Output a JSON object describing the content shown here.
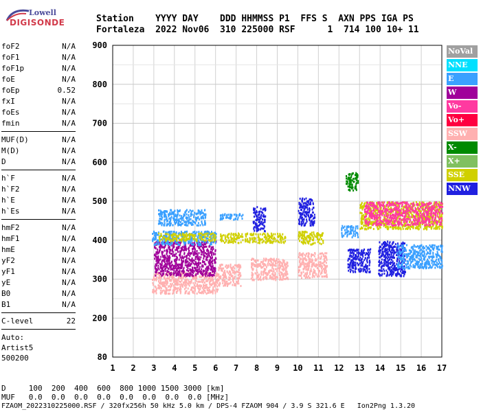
{
  "logo": {
    "line1": "Lowell",
    "line2": "DIGISONDE"
  },
  "header": {
    "row1": "Station    YYYY DAY    DDD HHMMSS P1  FFS S  AXN PPS IGA PS",
    "row2": "Fortaleza  2022 Nov06  310 225000 RSF      1  714 100 10+ 11"
  },
  "params": {
    "group1": [
      [
        "foF2",
        "N/A"
      ],
      [
        "foF1",
        "N/A"
      ],
      [
        "foF1p",
        "N/A"
      ],
      [
        "foE",
        "N/A"
      ],
      [
        "foEp",
        "0.52"
      ],
      [
        "fxI",
        "N/A"
      ],
      [
        "foEs",
        "N/A"
      ],
      [
        "fmin",
        "N/A"
      ]
    ],
    "group2": [
      [
        "MUF(D)",
        "N/A"
      ],
      [
        "M(D)",
        "N/A"
      ],
      [
        "D",
        "N/A"
      ]
    ],
    "group3": [
      [
        "h`F",
        "N/A"
      ],
      [
        "h`F2",
        "N/A"
      ],
      [
        "h`E",
        "N/A"
      ],
      [
        "h`Es",
        "N/A"
      ]
    ],
    "group4": [
      [
        "hmF2",
        "N/A"
      ],
      [
        "hmF1",
        "N/A"
      ],
      [
        "hmE",
        "N/A"
      ],
      [
        "yF2",
        "N/A"
      ],
      [
        "yF1",
        "N/A"
      ],
      [
        "yE",
        "N/A"
      ],
      [
        "B0",
        "N/A"
      ],
      [
        "B1",
        "N/A"
      ]
    ],
    "clevel": [
      "C-level",
      "22"
    ],
    "auto": [
      "Auto:",
      "Artist5",
      "500200"
    ]
  },
  "legend": [
    {
      "label": "NoVal",
      "color": "#a0a0a0"
    },
    {
      "label": "NNE",
      "color": "#00e0ff"
    },
    {
      "label": "E",
      "color": "#3aa0ff"
    },
    {
      "label": "W",
      "color": "#a0009a"
    },
    {
      "label": "Vo-",
      "color": "#ff3aa0"
    },
    {
      "label": "Vo+",
      "color": "#ff0040"
    },
    {
      "label": "SSW",
      "color": "#ffb0b0"
    },
    {
      "label": "X-",
      "color": "#008a00"
    },
    {
      "label": "X+",
      "color": "#80c060"
    },
    {
      "label": "SSE",
      "color": "#d0d000"
    },
    {
      "label": "NNW",
      "color": "#2020e0"
    }
  ],
  "bottom": {
    "drow": "D     100  200  400  600  800 1000 1500 3000 [km]",
    "mrow": "MUF   0.0  0.0  0.0  0.0  0.0  0.0  0.0  0.0 [MHz]"
  },
  "footer": "FZAOM_2022310225000.RSF / 320fx256h 50 kHz 5.0 km / DPS-4 FZAOM 904 / 3.9 S 321.6 E   Ion2Png 1.3.20",
  "chart_data": {
    "type": "scatter",
    "xlim": [
      1,
      17
    ],
    "ylim": [
      80,
      900
    ],
    "xticks": [
      1,
      2,
      3,
      4,
      5,
      6,
      7,
      8,
      9,
      10,
      11,
      12,
      13,
      14,
      15,
      16,
      17
    ],
    "yticks": [
      80,
      200,
      300,
      400,
      500,
      600,
      700,
      800,
      900
    ],
    "clusters": [
      {
        "name": "SSW",
        "color": "#ffb0b0",
        "x": [
          2.9,
          6.1
        ],
        "y": [
          265,
          320
        ]
      },
      {
        "name": "SSW",
        "color": "#ffb0b0",
        "x": [
          6.1,
          7.2
        ],
        "y": [
          285,
          340
        ]
      },
      {
        "name": "SSW",
        "color": "#ffb0b0",
        "x": [
          7.7,
          9.5
        ],
        "y": [
          300,
          355
        ]
      },
      {
        "name": "SSW",
        "color": "#ffb0b0",
        "x": [
          10.0,
          11.4
        ],
        "y": [
          305,
          370
        ]
      },
      {
        "name": "W",
        "color": "#a0009a",
        "x": [
          3.0,
          6.0
        ],
        "y": [
          310,
          400
        ]
      },
      {
        "name": "E",
        "color": "#3aa0ff",
        "x": [
          2.9,
          6.0
        ],
        "y": [
          390,
          425
        ]
      },
      {
        "name": "E",
        "color": "#3aa0ff",
        "x": [
          3.2,
          5.5
        ],
        "y": [
          440,
          480
        ]
      },
      {
        "name": "SSE",
        "color": "#d0d000",
        "x": [
          3.2,
          6.0
        ],
        "y": [
          400,
          420
        ]
      },
      {
        "name": "SSE",
        "color": "#d0d000",
        "x": [
          6.2,
          7.3
        ],
        "y": [
          395,
          420
        ]
      },
      {
        "name": "E",
        "color": "#3aa0ff",
        "x": [
          6.2,
          7.3
        ],
        "y": [
          455,
          470
        ]
      },
      {
        "name": "SSE",
        "color": "#d0d000",
        "x": [
          7.4,
          9.4
        ],
        "y": [
          395,
          420
        ]
      },
      {
        "name": "NNW",
        "color": "#2020e0",
        "x": [
          7.8,
          8.4
        ],
        "y": [
          425,
          490
        ]
      },
      {
        "name": "SSE",
        "color": "#d0d000",
        "x": [
          10.0,
          11.2
        ],
        "y": [
          390,
          425
        ]
      },
      {
        "name": "NNW",
        "color": "#2020e0",
        "x": [
          10.0,
          10.8
        ],
        "y": [
          440,
          510
        ]
      },
      {
        "name": "E",
        "color": "#3aa0ff",
        "x": [
          12.1,
          12.9
        ],
        "y": [
          410,
          440
        ]
      },
      {
        "name": "X-",
        "color": "#008a00",
        "x": [
          12.3,
          12.9
        ],
        "y": [
          530,
          575
        ]
      },
      {
        "name": "NNW",
        "color": "#2020e0",
        "x": [
          12.4,
          13.5
        ],
        "y": [
          320,
          380
        ]
      },
      {
        "name": "NNW",
        "color": "#2020e0",
        "x": [
          13.9,
          15.2
        ],
        "y": [
          310,
          400
        ]
      },
      {
        "name": "E",
        "color": "#3aa0ff",
        "x": [
          14.8,
          17.0
        ],
        "y": [
          330,
          390
        ]
      },
      {
        "name": "SSE",
        "color": "#d0d000",
        "x": [
          13.0,
          17.0
        ],
        "y": [
          430,
          500
        ]
      },
      {
        "name": "Vo-",
        "color": "#ff3aa0",
        "x": [
          13.2,
          17.0
        ],
        "y": [
          440,
          500
        ]
      }
    ]
  }
}
